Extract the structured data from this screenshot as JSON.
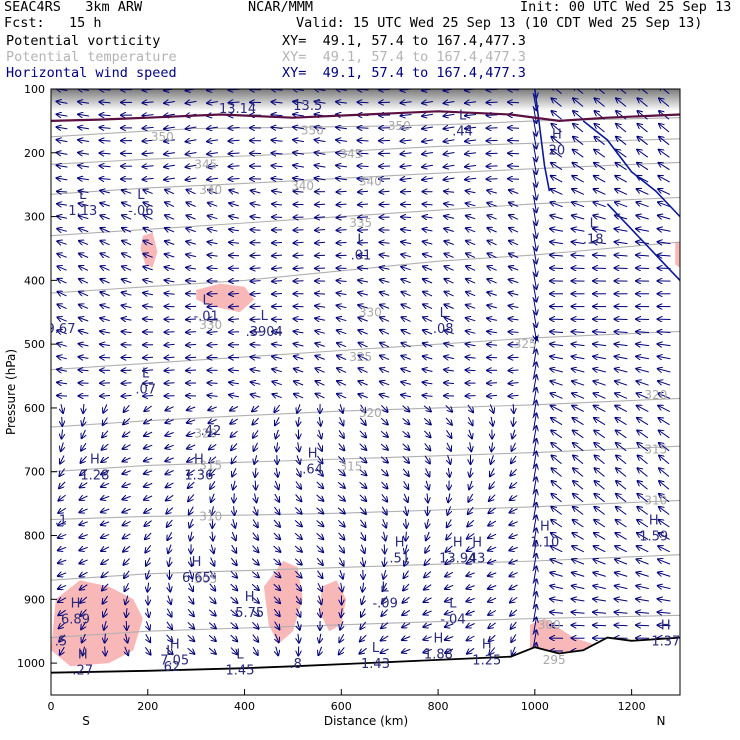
{
  "header": {
    "model": "SEAC4RS   3km ARW",
    "org": "NCAR/MMM",
    "init": "Init: 00 UTC Wed 25 Sep 13",
    "fcst": "Fcst:   15 h",
    "valid": "Valid: 15 UTC Wed 25 Sep 13 (10 CDT Wed 25 Sep 13)",
    "fields": [
      {
        "name": "Potential vorticity",
        "xy": "XY=  49.1, 57.4 to 167.4,477.3",
        "color": "#000000"
      },
      {
        "name": "Potential temperature",
        "xy": "XY=  49.1, 57.4 to 167.4,477.3",
        "color": "#b4b4b4"
      },
      {
        "name": "Horizontal wind speed",
        "xy": "XY=  49.1, 57.4 to 167.4,477.3",
        "color": "#000080"
      }
    ]
  },
  "chart_data": {
    "type": "cross-section",
    "xlabel": "Distance (km)",
    "ylabel": "Pressure (hPa)",
    "xlim": [
      0,
      1300
    ],
    "ylim": [
      1050,
      100
    ],
    "x_ticks": [
      0,
      200,
      400,
      600,
      800,
      1000,
      1200
    ],
    "y_ticks": [
      100,
      200,
      300,
      400,
      500,
      600,
      700,
      800,
      900,
      1000
    ],
    "x_end_labels": {
      "left": "S",
      "right": "N"
    },
    "colors": {
      "isentrope": "#b0b0b0",
      "wind_vector": "#00007a",
      "pv_shading": "#f8b8b8",
      "pv_contour": "#5a1040",
      "terrain": "#000000",
      "wind_speed_contour": "#0a1a9a"
    },
    "isentropes": [
      {
        "theta": "350",
        "points": [
          [
            0,
            175
          ],
          [
            150,
            168
          ],
          [
            300,
            162
          ],
          [
            500,
            160
          ],
          [
            700,
            158
          ],
          [
            850,
            155
          ],
          [
            1000,
            150
          ],
          [
            1300,
            145
          ]
        ]
      },
      {
        "theta": "345",
        "points": [
          [
            0,
            218
          ],
          [
            200,
            210
          ],
          [
            400,
            205
          ],
          [
            600,
            198
          ],
          [
            800,
            190
          ],
          [
            1000,
            185
          ],
          [
            1300,
            178
          ]
        ]
      },
      {
        "theta": "340",
        "points": [
          [
            0,
            265
          ],
          [
            200,
            255
          ],
          [
            400,
            248
          ],
          [
            600,
            240
          ],
          [
            800,
            232
          ],
          [
            1000,
            225
          ],
          [
            1300,
            215
          ]
        ]
      },
      {
        "theta": "335",
        "points": [
          [
            0,
            330
          ],
          [
            200,
            320
          ],
          [
            400,
            310
          ],
          [
            600,
            300
          ],
          [
            800,
            290
          ],
          [
            1000,
            280
          ],
          [
            1300,
            270
          ]
        ]
      },
      {
        "theta": "330",
        "points": [
          [
            0,
            420
          ],
          [
            200,
            410
          ],
          [
            400,
            400
          ],
          [
            600,
            385
          ],
          [
            800,
            370
          ],
          [
            1000,
            360
          ],
          [
            1300,
            340
          ]
        ]
      },
      {
        "theta": "325",
        "points": [
          [
            0,
            540
          ],
          [
            200,
            530
          ],
          [
            400,
            520
          ],
          [
            600,
            510
          ],
          [
            800,
            500
          ],
          [
            1000,
            490
          ],
          [
            1300,
            480
          ]
        ]
      },
      {
        "theta": "320",
        "points": [
          [
            0,
            630
          ],
          [
            200,
            620
          ],
          [
            400,
            612
          ],
          [
            600,
            605
          ],
          [
            800,
            600
          ],
          [
            1000,
            595
          ],
          [
            1300,
            585
          ]
        ]
      },
      {
        "theta": "315",
        "points": [
          [
            0,
            700
          ],
          [
            200,
            690
          ],
          [
            400,
            685
          ],
          [
            600,
            680
          ],
          [
            800,
            675
          ],
          [
            1000,
            670
          ],
          [
            1300,
            660
          ]
        ]
      },
      {
        "theta": "310",
        "points": [
          [
            0,
            775
          ],
          [
            200,
            770
          ],
          [
            400,
            768
          ],
          [
            600,
            765
          ],
          [
            800,
            760
          ],
          [
            1000,
            755
          ],
          [
            1300,
            745
          ]
        ]
      },
      {
        "theta": "305",
        "points": [
          [
            0,
            870
          ],
          [
            200,
            860
          ],
          [
            400,
            855
          ],
          [
            600,
            850
          ],
          [
            800,
            845
          ],
          [
            1000,
            840
          ],
          [
            1300,
            830
          ]
        ]
      },
      {
        "theta": "300",
        "points": [
          [
            0,
            960
          ],
          [
            200,
            950
          ],
          [
            400,
            945
          ],
          [
            600,
            940
          ],
          [
            800,
            935
          ],
          [
            1000,
            930
          ],
          [
            1300,
            925
          ]
        ]
      }
    ],
    "terrain_surface": [
      [
        0,
        1015
      ],
      [
        200,
        1012
      ],
      [
        400,
        1008
      ],
      [
        500,
        1005
      ],
      [
        650,
        1000
      ],
      [
        800,
        995
      ],
      [
        950,
        990
      ],
      [
        1000,
        975
      ],
      [
        1050,
        985
      ],
      [
        1100,
        980
      ],
      [
        1150,
        960
      ],
      [
        1200,
        965
      ],
      [
        1300,
        960
      ]
    ],
    "tropopause_pv": [
      [
        0,
        150
      ],
      [
        100,
        148
      ],
      [
        200,
        145
      ],
      [
        350,
        140
      ],
      [
        500,
        145
      ],
      [
        650,
        140
      ],
      [
        800,
        135
      ],
      [
        950,
        140
      ],
      [
        1050,
        150
      ],
      [
        1150,
        145
      ],
      [
        1300,
        140
      ]
    ],
    "pv_regions": [
      {
        "label": "upper-left",
        "points": [
          [
            190,
            330
          ],
          [
            210,
            325
          ],
          [
            220,
            355
          ],
          [
            210,
            380
          ],
          [
            195,
            375
          ],
          [
            185,
            350
          ]
        ]
      },
      {
        "label": "mid-left",
        "points": [
          [
            300,
            415
          ],
          [
            350,
            405
          ],
          [
            400,
            410
          ],
          [
            420,
            430
          ],
          [
            390,
            450
          ],
          [
            330,
            440
          ],
          [
            300,
            430
          ]
        ]
      },
      {
        "label": "low-left-1",
        "points": [
          [
            10,
            900
          ],
          [
            60,
            870
          ],
          [
            120,
            880
          ],
          [
            170,
            900
          ],
          [
            190,
            930
          ],
          [
            170,
            980
          ],
          [
            120,
            1000
          ],
          [
            40,
            1005
          ],
          [
            0,
            980
          ]
        ]
      },
      {
        "label": "low-left-2",
        "points": [
          [
            440,
            880
          ],
          [
            480,
            840
          ],
          [
            510,
            850
          ],
          [
            520,
            900
          ],
          [
            500,
            950
          ],
          [
            470,
            970
          ],
          [
            450,
            940
          ]
        ]
      },
      {
        "label": "low-mid",
        "points": [
          [
            560,
            880
          ],
          [
            590,
            870
          ],
          [
            610,
            900
          ],
          [
            600,
            940
          ],
          [
            575,
            950
          ],
          [
            555,
            920
          ]
        ]
      },
      {
        "label": "low-right",
        "points": [
          [
            990,
            940
          ],
          [
            1020,
            930
          ],
          [
            1050,
            945
          ],
          [
            1080,
            960
          ],
          [
            1120,
            970
          ],
          [
            1150,
            960
          ],
          [
            1100,
            990
          ],
          [
            1030,
            990
          ],
          [
            990,
            985
          ]
        ]
      },
      {
        "label": "right-top",
        "points": [
          [
            1290,
            340
          ],
          [
            1300,
            340
          ],
          [
            1300,
            380
          ],
          [
            1290,
            375
          ]
        ]
      }
    ],
    "wind_speed_contours": [
      {
        "label": "20",
        "points": [
          [
            1000,
            100
          ],
          [
            1010,
            160
          ],
          [
            1020,
            220
          ],
          [
            1030,
            260
          ]
        ]
      },
      {
        "label": "10",
        "points": [
          [
            1100,
            150
          ],
          [
            1150,
            180
          ],
          [
            1200,
            230
          ],
          [
            1250,
            260
          ],
          [
            1300,
            300
          ]
        ]
      },
      {
        "label": "",
        "points": [
          [
            1150,
            280
          ],
          [
            1200,
            320
          ],
          [
            1250,
            360
          ],
          [
            1300,
            400
          ]
        ]
      }
    ],
    "isentrope_labels": [
      {
        "text": "350",
        "x": 230,
        "p": 175
      },
      {
        "text": "350",
        "x": 540,
        "p": 165
      },
      {
        "text": "350",
        "x": 720,
        "p": 158
      },
      {
        "text": "345",
        "x": 320,
        "p": 218
      },
      {
        "text": "345",
        "x": 620,
        "p": 202
      },
      {
        "text": "340",
        "x": 330,
        "p": 258
      },
      {
        "text": "340",
        "x": 520,
        "p": 252
      },
      {
        "text": "340",
        "x": 660,
        "p": 245
      },
      {
        "text": "335",
        "x": 640,
        "p": 310
      },
      {
        "text": "330",
        "x": 330,
        "p": 470
      },
      {
        "text": "330",
        "x": 660,
        "p": 450
      },
      {
        "text": "325",
        "x": 640,
        "p": 520
      },
      {
        "text": "325",
        "x": 980,
        "p": 500
      },
      {
        "text": "320",
        "x": 320,
        "p": 640
      },
      {
        "text": "320",
        "x": 660,
        "p": 608
      },
      {
        "text": "320",
        "x": 1250,
        "p": 580
      },
      {
        "text": "315",
        "x": 330,
        "p": 690
      },
      {
        "text": "315",
        "x": 620,
        "p": 692
      },
      {
        "text": "315",
        "x": 1250,
        "p": 665
      },
      {
        "text": "310",
        "x": 330,
        "p": 770
      },
      {
        "text": "310",
        "x": 1250,
        "p": 745
      },
      {
        "text": "305",
        "x": 320,
        "p": 868
      },
      {
        "text": "300",
        "x": 1030,
        "p": 940
      },
      {
        "text": "295",
        "x": 1040,
        "p": 995
      }
    ],
    "extrema_labels": [
      {
        "mark": "L",
        "value": "1.13",
        "x": 45,
        "p": 285
      },
      {
        "mark": "L",
        "value": "-.06",
        "x": 165,
        "p": 285
      },
      {
        "mark": "L",
        "value": ".01",
        "x": 620,
        "p": 355
      },
      {
        "mark": "L",
        "value": ".18",
        "x": 1100,
        "p": 330
      },
      {
        "mark": "L",
        "value": "-.01",
        "x": 300,
        "p": 450
      },
      {
        "mark": "L",
        "value": ".3904",
        "x": 420,
        "p": 475
      },
      {
        "mark": "L",
        "value": ".08",
        "x": 790,
        "p": 470
      },
      {
        "mark": "L",
        "value": ".07",
        "x": 175,
        "p": 565
      },
      {
        "mark": "",
        "value": ".42",
        "x": 310,
        "p": 630
      },
      {
        "mark": "H",
        "value": "1.28",
        "x": 70,
        "p": 700
      },
      {
        "mark": "H",
        "value": "1.36",
        "x": 285,
        "p": 700
      },
      {
        "mark": "H",
        "value": ".64",
        "x": 520,
        "p": 690
      },
      {
        "mark": "H",
        "value": "6.65",
        "x": 280,
        "p": 860
      },
      {
        "mark": "H",
        "value": ".51",
        "x": 700,
        "p": 830
      },
      {
        "mark": "H",
        "value": "13.94",
        "x": 820,
        "p": 830
      },
      {
        "mark": "H",
        "value": "43",
        "x": 860,
        "p": 830
      },
      {
        "mark": "H",
        "value": "1.10",
        "x": 1000,
        "p": 805
      },
      {
        "mark": "H",
        "value": "1.59",
        "x": 1225,
        "p": 795
      },
      {
        "mark": "H",
        "value": "6.89",
        "x": 30,
        "p": 925
      },
      {
        "mark": "H",
        "value": "5.75",
        "x": 390,
        "p": 915
      },
      {
        "mark": "L",
        "value": "-.09",
        "x": 670,
        "p": 900
      },
      {
        "mark": "L",
        "value": "-.04",
        "x": 810,
        "p": 925
      },
      {
        "mark": "H",
        "value": ".27",
        "x": 45,
        "p": 1005
      },
      {
        "mark": "H",
        "value": "7.05",
        "x": 235,
        "p": 990
      },
      {
        "mark": "L",
        "value": "1.45",
        "x": 370,
        "p": 1005
      },
      {
        "mark": "L",
        "value": ".62",
        "x": 225,
        "p": 1000
      },
      {
        "mark": "",
        "value": ".8",
        "x": 485,
        "p": 995
      },
      {
        "mark": "L",
        "value": "1.43",
        "x": 650,
        "p": 995
      },
      {
        "mark": "H",
        "value": "1.88",
        "x": 780,
        "p": 980
      },
      {
        "mark": "H",
        "value": "1.25",
        "x": 880,
        "p": 990
      },
      {
        "mark": "H",
        "value": "1.37",
        "x": 1250,
        "p": 960
      },
      {
        "mark": "H",
        "value": "20",
        "x": 1025,
        "p": 190
      },
      {
        "mark": "",
        "value": "13.14",
        "x": 365,
        "p": 125
      },
      {
        "mark": "",
        "value": "13.5",
        "x": 510,
        "p": 120
      },
      {
        "mark": "L",
        "value": ".44",
        "x": 830,
        "p": 160
      },
      {
        "mark": "",
        "value": "9.67",
        "x": 0,
        "p": 470
      },
      {
        "mark": "",
        "value": ".1",
        "x": 0,
        "p": 770
      },
      {
        "mark": "",
        "value": ".5",
        "x": 0,
        "p": 960
      },
      {
        "mark": "L",
        "value": ".0",
        "x": 1290,
        "p": 360
      }
    ]
  }
}
